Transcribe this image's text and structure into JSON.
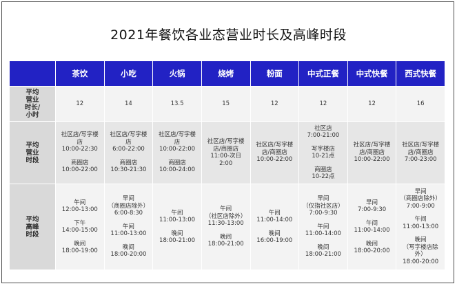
{
  "title": "2021年餐饮各业态营业时长及高峰时段",
  "header": {
    "corner": "",
    "columns": [
      "茶饮",
      "小吃",
      "火锅",
      "烧烤",
      "粉面",
      "中式正餐",
      "中式快餐",
      "西式快餐"
    ]
  },
  "rows": [
    {
      "label": [
        "平均",
        "营业",
        "时长/",
        "小时"
      ],
      "cells": [
        [
          [
            "12"
          ]
        ],
        [
          [
            "14"
          ]
        ],
        [
          [
            "13.5"
          ]
        ],
        [
          [
            "15"
          ]
        ],
        [
          [
            "12"
          ]
        ],
        [
          [
            "12"
          ]
        ],
        [
          [
            "12"
          ]
        ],
        [
          [
            "16"
          ]
        ]
      ]
    },
    {
      "label": [
        "平均",
        "营业",
        "时段"
      ],
      "cells": [
        [
          [
            "社区店/写字楼",
            "店",
            "10:00-22:30"
          ],
          [
            "商圈店",
            "10:00-22:00"
          ]
        ],
        [
          [
            "社区店/写字楼",
            "店",
            "6:00-22:00"
          ],
          [
            "商圈店",
            "10:30-21:30"
          ]
        ],
        [
          [
            "社区店/写字楼",
            "店",
            "10:00-22:00"
          ],
          [
            "商圈店",
            "10:00-24:00"
          ]
        ],
        [
          [
            "社区店/写字楼",
            "店/商圈店",
            "11:00-次日",
            "2:00"
          ]
        ],
        [
          [
            "社区店/写字楼",
            "店/商圈店",
            "10:00-22:00"
          ]
        ],
        [
          [
            "社区店",
            "7:00-21:00"
          ],
          [
            "写字楼店",
            "10-21点"
          ],
          [
            "商圈店",
            "10-22点"
          ]
        ],
        [
          [
            "社区店/写字楼",
            "店/商圈店",
            "10:00-22:00"
          ]
        ],
        [
          [
            "社区店/写字楼",
            "店/商圈店",
            "7:00-23:00"
          ]
        ]
      ]
    },
    {
      "label": [
        "平均",
        "高峰",
        "时段"
      ],
      "cells": [
        [
          [
            "午间",
            "12:00-13:00"
          ],
          [
            "下午",
            "14:00-15:00"
          ],
          [
            "晚间",
            "18:00-19:00"
          ]
        ],
        [
          [
            "早间",
            "（商圈店除外）",
            "6:00-8:30"
          ],
          [
            "午间",
            "11:00-13:00"
          ],
          [
            "晚间",
            "18:00-20:00"
          ]
        ],
        [
          [
            "午间",
            "11:00-13:00"
          ],
          [
            "晚间",
            "18:00-21:00"
          ]
        ],
        [
          [
            "午间",
            "（社区店除外）",
            "11:30-13:00"
          ],
          [
            "晚间",
            "18:00-21:00"
          ]
        ],
        [
          [
            "午间",
            "11:00-14:00"
          ],
          [
            "晚间",
            "16:00-19:00"
          ]
        ],
        [
          [
            "早间",
            "（仅指社区店）",
            "7:00-9:30"
          ],
          [
            "午间",
            "11:00-14:00"
          ],
          [
            "晚间",
            "18:00-21:00"
          ]
        ],
        [
          [
            "早间",
            "7:00-9:30"
          ],
          [
            "午间",
            "11:00-14:00"
          ],
          [
            "晚间",
            "18:00-20:00"
          ]
        ],
        [
          [
            "早间",
            "（商圈店除外）",
            "7:00-9:00"
          ],
          [
            "午间",
            "11:00-13:00"
          ],
          [
            "晚间",
            "（写字楼店除",
            "外）",
            "18:00-20:00"
          ]
        ]
      ]
    }
  ]
}
